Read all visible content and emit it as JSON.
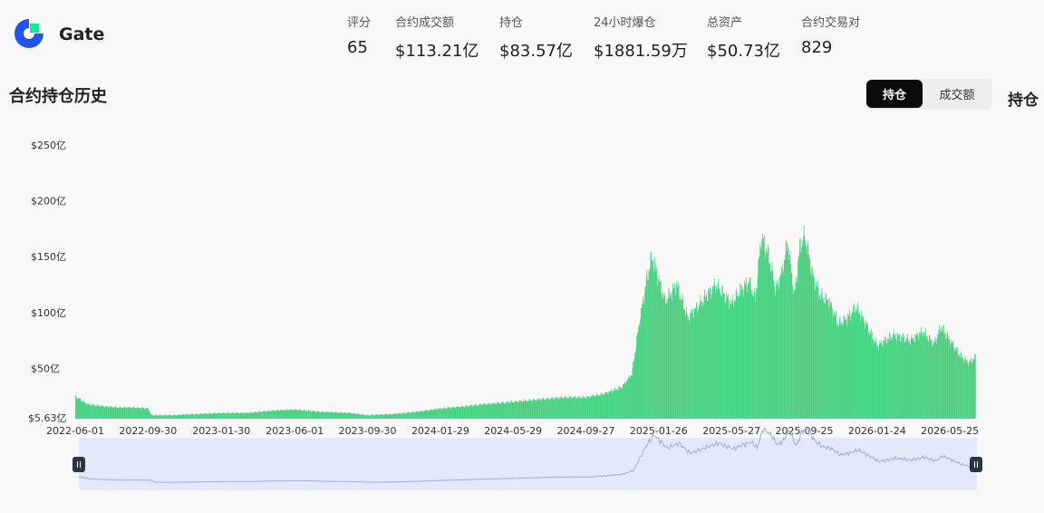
{
  "header": {
    "exchange_name": "Gate",
    "logo_icon": "gate-logo-icon",
    "brand_color": "#2354e6",
    "accent_color": "#17e5a0",
    "stats": [
      {
        "label": "评分",
        "value": "65"
      },
      {
        "label": "合约成交额",
        "value": "$113.21亿"
      },
      {
        "label": "持仓",
        "value": "$83.57亿"
      },
      {
        "label": "24小时爆仓",
        "value": "$1881.59万"
      },
      {
        "label": "总资产",
        "value": "$50.73亿"
      },
      {
        "label": "合约交易对",
        "value": "829"
      }
    ]
  },
  "section": {
    "title": "合约持仓历史",
    "toggle": {
      "active": "持仓",
      "inactive": "成交额"
    },
    "side_label": "持仓"
  },
  "chart_data": {
    "type": "bar",
    "bar_color": "#3ecf7a",
    "navigator_fill": "#e3e8fb",
    "navigator_line": "#9ab0ea",
    "y_min_label": "$5.63亿",
    "y_ticks": [
      {
        "value": 50,
        "label": "$50亿"
      },
      {
        "value": 100,
        "label": "$100亿"
      },
      {
        "value": 150,
        "label": "$150亿"
      },
      {
        "value": 200,
        "label": "$200亿"
      },
      {
        "value": 250,
        "label": "$250亿"
      }
    ],
    "ylim": [
      5.63,
      250
    ],
    "x_tick_labels": [
      "2022-06-01",
      "2022-09-30",
      "2023-01-30",
      "2023-06-01",
      "2023-09-30",
      "2024-01-29",
      "2024-05-29",
      "2024-09-27",
      "2025-01-26",
      "2025-05-27",
      "2025-09-25",
      "2026-01-24",
      "2026-05-25"
    ],
    "x_start": "2022-06-01",
    "x_end": "2026-07-06",
    "series": [
      {
        "dates": [
          "2022-06-01",
          "2022-06-20",
          "2022-07-15",
          "2022-08-10",
          "2022-09-05",
          "2022-09-30",
          "2022-10-05",
          "2022-11-10",
          "2022-12-15",
          "2023-01-30",
          "2023-03-15",
          "2023-04-20",
          "2023-06-01",
          "2023-07-15",
          "2023-08-30",
          "2023-09-30",
          "2023-11-10",
          "2023-12-20",
          "2024-01-29",
          "2024-03-10",
          "2024-04-15",
          "2024-05-29",
          "2024-07-10",
          "2024-08-20",
          "2024-09-27",
          "2024-10-25",
          "2024-11-25",
          "2024-12-12",
          "2024-12-24",
          "2025-01-05",
          "2025-01-14",
          "2025-01-20",
          "2025-02-05",
          "2025-02-25",
          "2025-03-15",
          "2025-04-10",
          "2025-05-01",
          "2025-05-27",
          "2025-06-10",
          "2025-06-25",
          "2025-07-05",
          "2025-07-15",
          "2025-07-28",
          "2025-08-08",
          "2025-08-18",
          "2025-08-28",
          "2025-09-08",
          "2025-09-18",
          "2025-09-26",
          "2025-10-10",
          "2025-10-22",
          "2025-11-05",
          "2025-11-20",
          "2025-12-05",
          "2025-12-20",
          "2026-01-05",
          "2026-01-24",
          "2026-02-20",
          "2026-03-20",
          "2026-04-10",
          "2026-04-28",
          "2026-05-10",
          "2026-05-25",
          "2026-06-10",
          "2026-06-25",
          "2026-07-06"
        ],
        "values": [
          25,
          18,
          16,
          15,
          15,
          14,
          8,
          8,
          9,
          10,
          10,
          12,
          13,
          11,
          10,
          8,
          9,
          11,
          14,
          16,
          18,
          20,
          22,
          24,
          24,
          27,
          33,
          45,
          90,
          128,
          150,
          140,
          110,
          125,
          95,
          112,
          125,
          108,
          120,
          128,
          112,
          168,
          150,
          120,
          135,
          164,
          115,
          162,
          168,
          130,
          115,
          110,
          90,
          95,
          105,
          90,
          70,
          80,
          75,
          83,
          72,
          87,
          75,
          62,
          55,
          60
        ]
      }
    ]
  }
}
